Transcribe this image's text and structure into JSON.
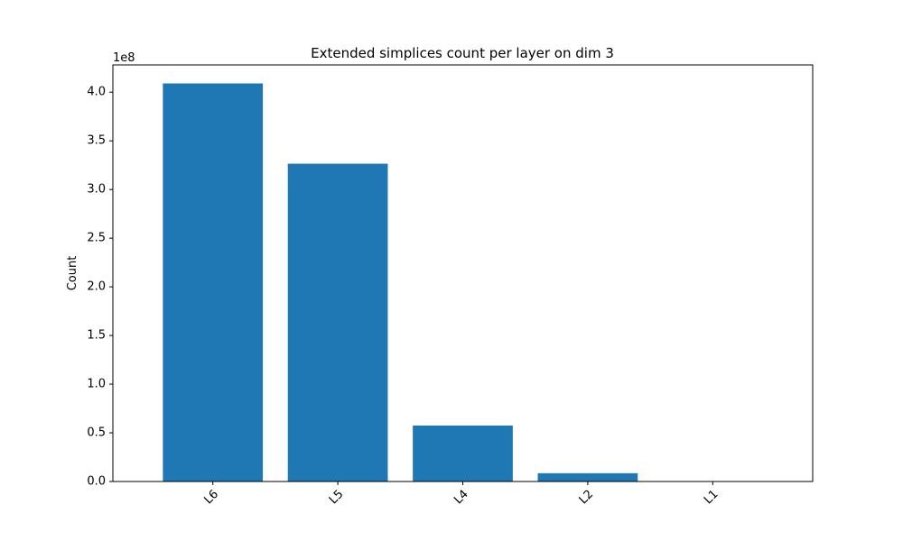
{
  "chart_data": {
    "type": "bar",
    "title": "Extended simplices count per layer on dim 3",
    "xlabel": "",
    "ylabel": "Count",
    "categories": [
      "L6",
      "L5",
      "L4",
      "L2",
      "L1"
    ],
    "values": [
      409000000,
      326500000,
      57500000,
      8500000,
      200000
    ],
    "ylim": [
      0,
      428000000
    ],
    "yticks": [
      0,
      50000000,
      100000000,
      150000000,
      200000000,
      250000000,
      300000000,
      350000000,
      400000000
    ],
    "ytick_labels": [
      "0.0",
      "0.5",
      "1.0",
      "1.5",
      "2.0",
      "2.5",
      "3.0",
      "3.5",
      "4.0"
    ],
    "y_offset_label": "1e8",
    "bar_color": "#1f77b4",
    "grid": false,
    "legend": "none"
  }
}
